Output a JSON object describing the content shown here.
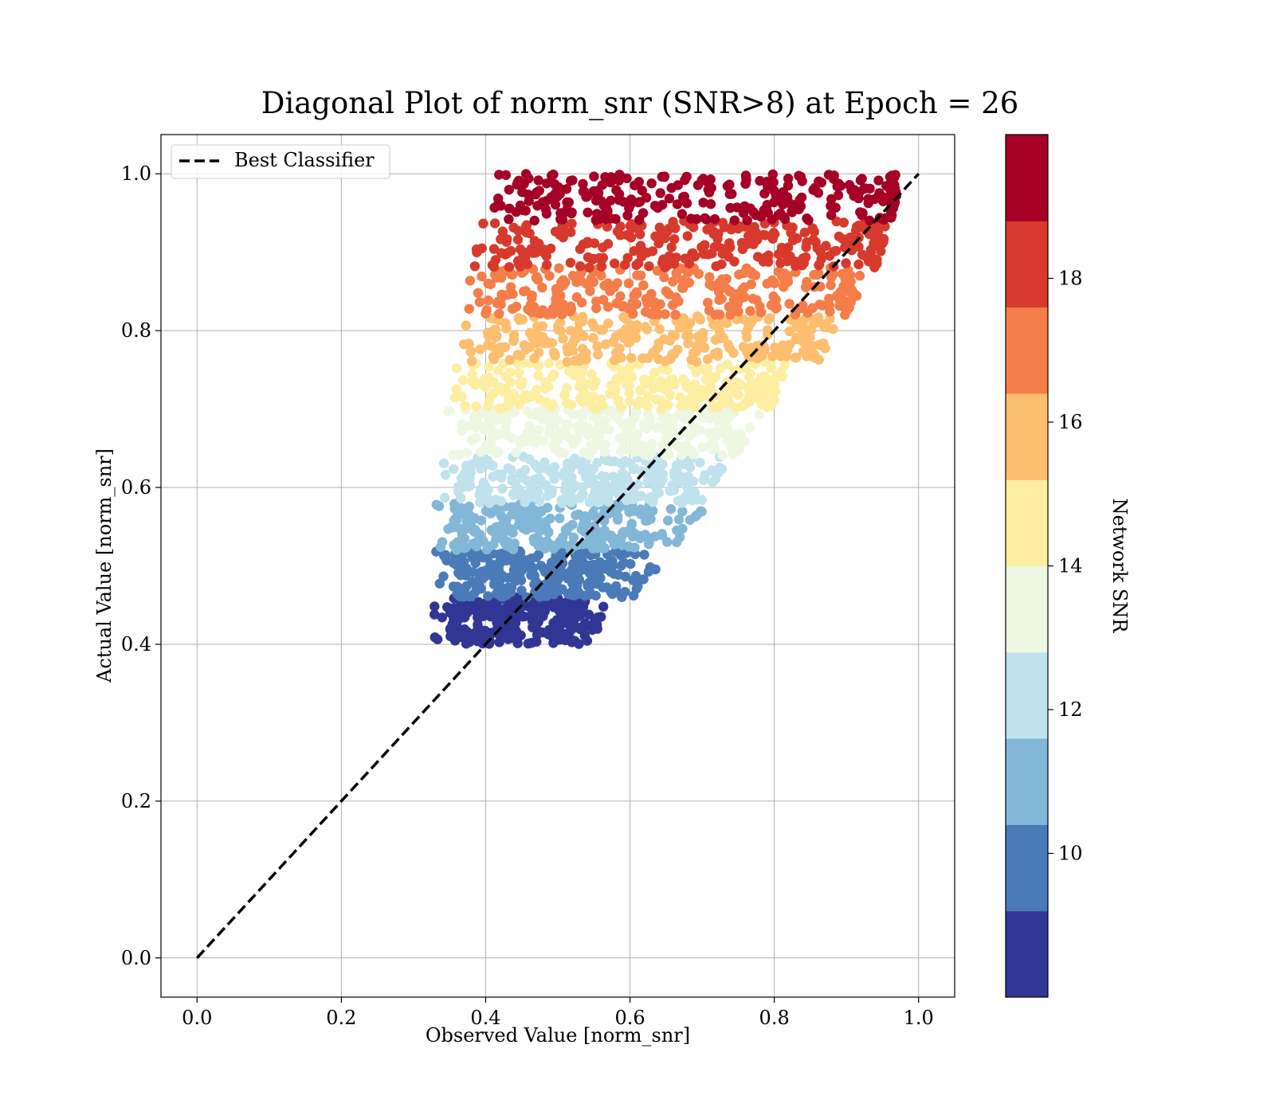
{
  "chart_data": {
    "type": "scatter",
    "title": "Diagonal Plot of norm_snr (SNR>8) at Epoch = 26",
    "xlabel": "Observed Value [norm_snr]",
    "ylabel": "Actual Value [norm_snr]",
    "xlim": [
      -0.05,
      1.05
    ],
    "ylim": [
      -0.05,
      1.05
    ],
    "xticks": [
      0.0,
      0.2,
      0.4,
      0.6,
      0.8,
      1.0
    ],
    "yticks": [
      0.0,
      0.2,
      0.4,
      0.6,
      0.8,
      1.0
    ],
    "xtick_labels": [
      "0.0",
      "0.2",
      "0.4",
      "0.6",
      "0.8",
      "1.0"
    ],
    "ytick_labels": [
      "0.0",
      "0.2",
      "0.4",
      "0.6",
      "0.8",
      "1.0"
    ],
    "grid": true,
    "legend": {
      "placement": "upper-left",
      "entries": [
        {
          "label": "Best Classifier",
          "style": "dashed",
          "color": "#000000"
        }
      ]
    },
    "reference_line": {
      "name": "Best Classifier",
      "x": [
        0.0,
        1.0
      ],
      "y": [
        0.0,
        1.0
      ],
      "color": "#000000",
      "style": "dashed"
    },
    "colorbar": {
      "label": "Network SNR",
      "range": [
        8,
        20
      ],
      "ticks": [
        10,
        12,
        14,
        16,
        18
      ],
      "tick_labels": [
        "10",
        "12",
        "14",
        "16",
        "18"
      ],
      "bands": [
        {
          "min": 8,
          "max": 9.2,
          "color": "#313695"
        },
        {
          "min": 9.2,
          "max": 10.4,
          "color": "#4a7ab7"
        },
        {
          "min": 10.4,
          "max": 11.6,
          "color": "#83b7d7"
        },
        {
          "min": 11.6,
          "max": 12.8,
          "color": "#bfe2ec"
        },
        {
          "min": 12.8,
          "max": 14.0,
          "color": "#edf7e2"
        },
        {
          "min": 14.0,
          "max": 15.2,
          "color": "#feeea2"
        },
        {
          "min": 15.2,
          "max": 16.4,
          "color": "#fdbe70"
        },
        {
          "min": 16.4,
          "max": 17.6,
          "color": "#f47d4a"
        },
        {
          "min": 17.6,
          "max": 18.8,
          "color": "#d73a2c"
        },
        {
          "min": 18.8,
          "max": 20.0,
          "color": "#a50026"
        }
      ]
    },
    "series": [
      {
        "snr": [
          8,
          9.2
        ],
        "actual": [
          0.4,
          0.46
        ],
        "observed_left": 0.35,
        "observed_right": 0.52,
        "sparse_right": 0.58,
        "color": "#313695"
      },
      {
        "snr": [
          9.2,
          10.4
        ],
        "actual": [
          0.46,
          0.52
        ],
        "observed_left": 0.355,
        "observed_right": 0.57,
        "sparse_right": 0.66,
        "color": "#4a7ab7"
      },
      {
        "snr": [
          10.4,
          11.6
        ],
        "actual": [
          0.52,
          0.58
        ],
        "observed_left": 0.355,
        "observed_right": 0.62,
        "sparse_right": 0.71,
        "color": "#83b7d7"
      },
      {
        "snr": [
          11.6,
          12.8
        ],
        "actual": [
          0.58,
          0.64
        ],
        "observed_left": 0.365,
        "observed_right": 0.67,
        "sparse_right": 0.74,
        "color": "#bfe2ec"
      },
      {
        "snr": [
          12.8,
          14.0
        ],
        "actual": [
          0.64,
          0.7
        ],
        "observed_left": 0.37,
        "observed_right": 0.72,
        "sparse_right": 0.79,
        "color": "#edf7e2"
      },
      {
        "snr": [
          14.0,
          15.2
        ],
        "actual": [
          0.7,
          0.76
        ],
        "observed_left": 0.38,
        "observed_right": 0.78,
        "sparse_right": 0.82,
        "color": "#feeea2"
      },
      {
        "snr": [
          15.2,
          16.4
        ],
        "actual": [
          0.76,
          0.82
        ],
        "observed_left": 0.39,
        "observed_right": 0.84,
        "sparse_right": 0.9,
        "color": "#fdbe70"
      },
      {
        "snr": [
          16.4,
          17.6
        ],
        "actual": [
          0.82,
          0.88
        ],
        "observed_left": 0.4,
        "observed_right": 0.89,
        "sparse_right": 0.93,
        "color": "#f47d4a"
      },
      {
        "snr": [
          17.6,
          18.8
        ],
        "actual": [
          0.88,
          0.94
        ],
        "observed_left": 0.41,
        "observed_right": 0.93,
        "sparse_right": 0.96,
        "color": "#d73a2c"
      },
      {
        "snr": [
          18.8,
          20.0
        ],
        "actual": [
          0.94,
          1.0
        ],
        "observed_left": 0.43,
        "observed_right": 0.96,
        "sparse_right": 0.97,
        "color": "#a50026"
      }
    ]
  }
}
